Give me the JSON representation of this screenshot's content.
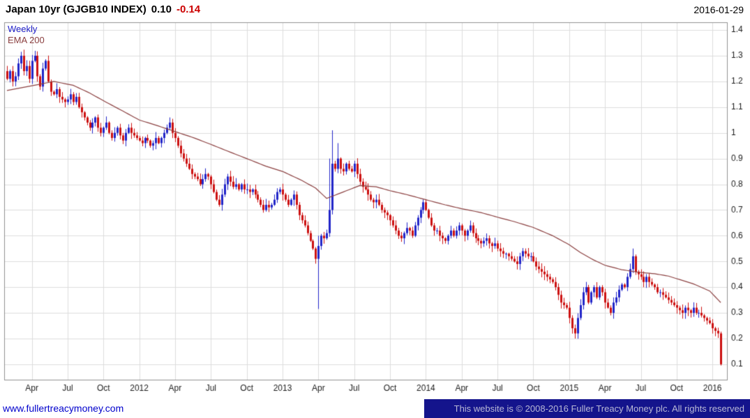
{
  "header": {
    "title": "Japan 10yr (GJGB10 INDEX)",
    "last_value": "0.10",
    "change": "-0.14",
    "date": "2016-01-29"
  },
  "legend": {
    "timeframe": "Weekly",
    "overlay": "EMA 200"
  },
  "footer": {
    "site_url": "www.fullertreacymoney.com",
    "copyright": "This website is © 2008-2016 Fuller Treacy Money plc. All rights reserved"
  },
  "colors": {
    "up_candle": "#2124c8",
    "down_candle": "#cc1111",
    "ema_line": "#8b4040",
    "grid": "#dcdcdc",
    "plot_border": "#909090",
    "axis_text": "#1a1a1a",
    "title_text": "#000000",
    "change_text": "#cc0000",
    "legend_timeframe": "#2020c8",
    "legend_ema": "#8b4040",
    "footer_bg": "#14148c",
    "footer_text": "#b9b9d6",
    "url_text": "#0000cc"
  },
  "chart_data": {
    "type": "candlestick",
    "title": "Japan 10yr (GJGB10 INDEX)",
    "timeframe": "Weekly",
    "overlay": "EMA 200",
    "last_close": 0.1,
    "change": -0.14,
    "as_of_date": "2016-01-29",
    "grid": true,
    "ylim": [
      0.04,
      1.43
    ],
    "y_ticks": [
      0.1,
      0.2,
      0.3,
      0.4,
      0.5,
      0.6,
      0.7,
      0.8,
      0.9,
      1.0,
      1.1,
      1.2,
      1.3,
      1.4
    ],
    "x_ticks": [
      {
        "week": 9,
        "label": "Apr"
      },
      {
        "week": 22,
        "label": "Jul"
      },
      {
        "week": 35,
        "label": "Oct"
      },
      {
        "week": 48,
        "label": "2012"
      },
      {
        "week": 61,
        "label": "Apr"
      },
      {
        "week": 74,
        "label": "Jul"
      },
      {
        "week": 87,
        "label": "Oct"
      },
      {
        "week": 100,
        "label": "2013"
      },
      {
        "week": 113,
        "label": "Apr"
      },
      {
        "week": 126,
        "label": "Jul"
      },
      {
        "week": 139,
        "label": "Oct"
      },
      {
        "week": 152,
        "label": "2014"
      },
      {
        "week": 165,
        "label": "Apr"
      },
      {
        "week": 178,
        "label": "Jul"
      },
      {
        "week": 191,
        "label": "Oct"
      },
      {
        "week": 204,
        "label": "2015"
      },
      {
        "week": 217,
        "label": "Apr"
      },
      {
        "week": 230,
        "label": "Jul"
      },
      {
        "week": 243,
        "label": "Oct"
      },
      {
        "week": 256,
        "label": "2016"
      }
    ],
    "weekly_closes": [
      1.21,
      1.24,
      1.2,
      1.22,
      1.27,
      1.3,
      1.24,
      1.26,
      1.21,
      1.28,
      1.3,
      1.22,
      1.18,
      1.25,
      1.28,
      1.2,
      1.16,
      1.15,
      1.17,
      1.14,
      1.13,
      1.12,
      1.13,
      1.15,
      1.12,
      1.14,
      1.1,
      1.08,
      1.06,
      1.04,
      1.02,
      1.04,
      1.06,
      1.02,
      1.0,
      1.02,
      1.04,
      1.0,
      0.98,
      1.0,
      1.02,
      0.99,
      0.97,
      1.0,
      1.02,
      1.0,
      0.99,
      0.98,
      0.97,
      0.96,
      0.98,
      0.97,
      0.95,
      0.96,
      0.98,
      0.96,
      0.98,
      1.0,
      1.02,
      1.04,
      1.0,
      0.98,
      0.95,
      0.92,
      0.9,
      0.88,
      0.86,
      0.84,
      0.83,
      0.82,
      0.8,
      0.82,
      0.84,
      0.83,
      0.8,
      0.77,
      0.74,
      0.72,
      0.76,
      0.8,
      0.83,
      0.81,
      0.79,
      0.8,
      0.78,
      0.8,
      0.78,
      0.78,
      0.77,
      0.78,
      0.76,
      0.74,
      0.72,
      0.7,
      0.72,
      0.71,
      0.72,
      0.74,
      0.77,
      0.78,
      0.76,
      0.74,
      0.72,
      0.74,
      0.76,
      0.72,
      0.68,
      0.66,
      0.64,
      0.61,
      0.58,
      0.55,
      0.51,
      0.56,
      0.6,
      0.59,
      0.61,
      0.7,
      0.88,
      0.86,
      0.9,
      0.86,
      0.85,
      0.88,
      0.86,
      0.85,
      0.88,
      0.84,
      0.81,
      0.79,
      0.78,
      0.76,
      0.74,
      0.73,
      0.74,
      0.72,
      0.7,
      0.69,
      0.68,
      0.66,
      0.64,
      0.62,
      0.6,
      0.59,
      0.61,
      0.63,
      0.62,
      0.6,
      0.64,
      0.67,
      0.7,
      0.73,
      0.7,
      0.67,
      0.64,
      0.62,
      0.62,
      0.6,
      0.59,
      0.58,
      0.6,
      0.62,
      0.6,
      0.62,
      0.64,
      0.62,
      0.6,
      0.62,
      0.64,
      0.61,
      0.59,
      0.58,
      0.57,
      0.58,
      0.59,
      0.57,
      0.56,
      0.57,
      0.55,
      0.54,
      0.53,
      0.53,
      0.52,
      0.51,
      0.5,
      0.49,
      0.52,
      0.54,
      0.53,
      0.52,
      0.52,
      0.5,
      0.48,
      0.47,
      0.46,
      0.45,
      0.44,
      0.43,
      0.42,
      0.4,
      0.37,
      0.34,
      0.33,
      0.32,
      0.28,
      0.24,
      0.22,
      0.28,
      0.33,
      0.38,
      0.4,
      0.34,
      0.38,
      0.4,
      0.36,
      0.4,
      0.38,
      0.34,
      0.32,
      0.3,
      0.34,
      0.36,
      0.39,
      0.41,
      0.4,
      0.44,
      0.47,
      0.52,
      0.46,
      0.45,
      0.44,
      0.42,
      0.44,
      0.42,
      0.41,
      0.4,
      0.38,
      0.38,
      0.37,
      0.36,
      0.35,
      0.34,
      0.33,
      0.32,
      0.31,
      0.3,
      0.32,
      0.31,
      0.3,
      0.32,
      0.3,
      0.3,
      0.29,
      0.28,
      0.27,
      0.26,
      0.24,
      0.23,
      0.22,
      0.1
    ],
    "wick_overrides": {
      "59": {
        "high": 1.06
      },
      "113": {
        "low": 0.315,
        "high": 0.6
      },
      "117": {
        "high": 0.9
      },
      "118": {
        "high": 1.01
      },
      "120": {
        "high": 0.96
      },
      "206": {
        "low": 0.2
      },
      "227": {
        "high": 0.55
      },
      "259": {
        "low": 0.095
      }
    },
    "ema200_anchors": [
      [
        0,
        1.165
      ],
      [
        10,
        1.185
      ],
      [
        17,
        1.2
      ],
      [
        24,
        1.185
      ],
      [
        30,
        1.155
      ],
      [
        35,
        1.125
      ],
      [
        42,
        1.085
      ],
      [
        48,
        1.05
      ],
      [
        54,
        1.03
      ],
      [
        61,
        1.005
      ],
      [
        68,
        0.98
      ],
      [
        74,
        0.955
      ],
      [
        81,
        0.925
      ],
      [
        87,
        0.9
      ],
      [
        94,
        0.87
      ],
      [
        100,
        0.85
      ],
      [
        107,
        0.815
      ],
      [
        112,
        0.785
      ],
      [
        116,
        0.745
      ],
      [
        122,
        0.77
      ],
      [
        128,
        0.795
      ],
      [
        134,
        0.79
      ],
      [
        139,
        0.775
      ],
      [
        145,
        0.76
      ],
      [
        152,
        0.74
      ],
      [
        159,
        0.72
      ],
      [
        165,
        0.705
      ],
      [
        172,
        0.69
      ],
      [
        178,
        0.672
      ],
      [
        184,
        0.655
      ],
      [
        191,
        0.632
      ],
      [
        198,
        0.6
      ],
      [
        204,
        0.565
      ],
      [
        208,
        0.535
      ],
      [
        213,
        0.505
      ],
      [
        217,
        0.485
      ],
      [
        223,
        0.468
      ],
      [
        229,
        0.458
      ],
      [
        235,
        0.452
      ],
      [
        240,
        0.443
      ],
      [
        243,
        0.433
      ],
      [
        249,
        0.413
      ],
      [
        255,
        0.385
      ],
      [
        259,
        0.34
      ]
    ]
  }
}
